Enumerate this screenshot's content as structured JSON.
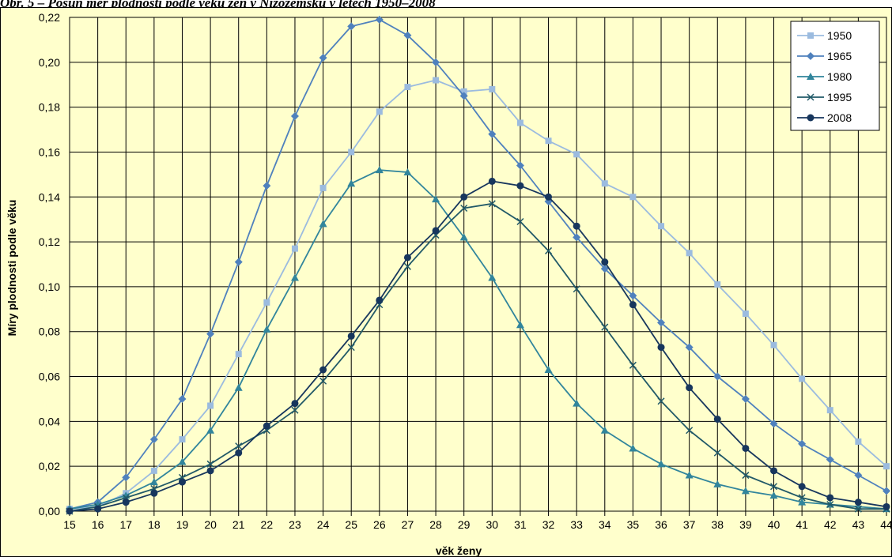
{
  "caption": "Obr. 5 – Posun měr plodnosti podle věku žen v Nizozemsku v letech 1950–2008",
  "chart_data": {
    "type": "line",
    "xlabel": "věk ženy",
    "ylabel": "Míry plodnosti podle věku",
    "xlim": [
      15,
      44
    ],
    "ylim": [
      0,
      0.22
    ],
    "y_ticks": [
      "0,00",
      "0,02",
      "0,04",
      "0,06",
      "0,08",
      "0,10",
      "0,12",
      "0,14",
      "0,16",
      "0,18",
      "0,20",
      "0,22"
    ],
    "grid": true,
    "legend_position": "top-right",
    "x": [
      15,
      16,
      17,
      18,
      19,
      20,
      21,
      22,
      23,
      24,
      25,
      26,
      27,
      28,
      29,
      30,
      31,
      32,
      33,
      34,
      35,
      36,
      37,
      38,
      39,
      40,
      41,
      42,
      43,
      44
    ],
    "series": [
      {
        "name": "1950",
        "color": "#9bbbdf",
        "marker": "square",
        "values": [
          0.001,
          0.002,
          0.008,
          0.018,
          0.032,
          0.047,
          0.07,
          0.093,
          0.117,
          0.144,
          0.16,
          0.178,
          0.189,
          0.192,
          0.187,
          0.188,
          0.173,
          0.165,
          0.159,
          0.146,
          0.14,
          0.127,
          0.115,
          0.101,
          0.088,
          0.074,
          0.059,
          0.045,
          0.031,
          0.02
        ]
      },
      {
        "name": "1965",
        "color": "#4f81bd",
        "marker": "diamond",
        "values": [
          0.001,
          0.004,
          0.015,
          0.032,
          0.05,
          0.079,
          0.111,
          0.145,
          0.176,
          0.202,
          0.216,
          0.219,
          0.212,
          0.2,
          0.185,
          0.168,
          0.154,
          0.138,
          0.122,
          0.108,
          0.096,
          0.084,
          0.073,
          0.06,
          0.05,
          0.039,
          0.03,
          0.023,
          0.016,
          0.009
        ]
      },
      {
        "name": "1980",
        "color": "#31859c",
        "marker": "triangle",
        "values": [
          0.001,
          0.003,
          0.007,
          0.013,
          0.022,
          0.036,
          0.055,
          0.081,
          0.104,
          0.128,
          0.146,
          0.152,
          0.151,
          0.139,
          0.122,
          0.104,
          0.083,
          0.063,
          0.048,
          0.036,
          0.028,
          0.021,
          0.016,
          0.012,
          0.009,
          0.007,
          0.004,
          0.003,
          0.002,
          0.001
        ]
      },
      {
        "name": "1995",
        "color": "#215968",
        "marker": "x",
        "values": [
          0.0,
          0.002,
          0.006,
          0.01,
          0.015,
          0.021,
          0.029,
          0.036,
          0.045,
          0.058,
          0.073,
          0.092,
          0.109,
          0.123,
          0.135,
          0.137,
          0.129,
          0.116,
          0.099,
          0.082,
          0.065,
          0.049,
          0.036,
          0.026,
          0.016,
          0.011,
          0.006,
          0.003,
          0.001,
          0.001
        ]
      },
      {
        "name": "2008",
        "color": "#17365d",
        "marker": "circle",
        "values": [
          0.0,
          0.001,
          0.004,
          0.008,
          0.013,
          0.018,
          0.026,
          0.038,
          0.048,
          0.063,
          0.078,
          0.094,
          0.113,
          0.125,
          0.14,
          0.147,
          0.145,
          0.14,
          0.127,
          0.111,
          0.092,
          0.073,
          0.055,
          0.041,
          0.028,
          0.018,
          0.011,
          0.006,
          0.004,
          0.002
        ]
      }
    ]
  }
}
